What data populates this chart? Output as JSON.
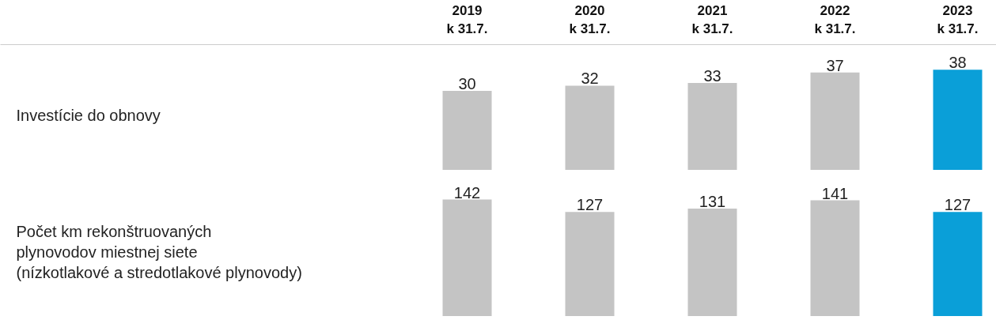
{
  "chart_data": [
    {
      "type": "bar",
      "ylabel": "Investície do obnovy",
      "categories": [
        "2019\nk 31.7.",
        "2020\nk 31.7.",
        "2021\nk 31.7.",
        "2022\nk 31.7.",
        "2023\nk 31.7."
      ],
      "values": [
        30,
        32,
        33,
        37,
        38
      ],
      "colors": [
        "#c4c4c4",
        "#c4c4c4",
        "#c4c4c4",
        "#c4c4c4",
        "#0a9fd8"
      ],
      "data_labels": true,
      "grid": false
    },
    {
      "type": "bar",
      "ylabel": "Počet km rekonštruovaných\nplynovodov miestnej siete\n(nízkotlakové a stredotlakové plynovody)",
      "categories": [
        null,
        null,
        null,
        null,
        null
      ],
      "values": [
        142,
        127,
        131,
        141,
        127
      ],
      "colors": [
        "#c4c4c4",
        "#c4c4c4",
        "#c4c4c4",
        "#c4c4c4",
        "#0a9fd8"
      ],
      "data_labels": true,
      "grid": false
    }
  ]
}
